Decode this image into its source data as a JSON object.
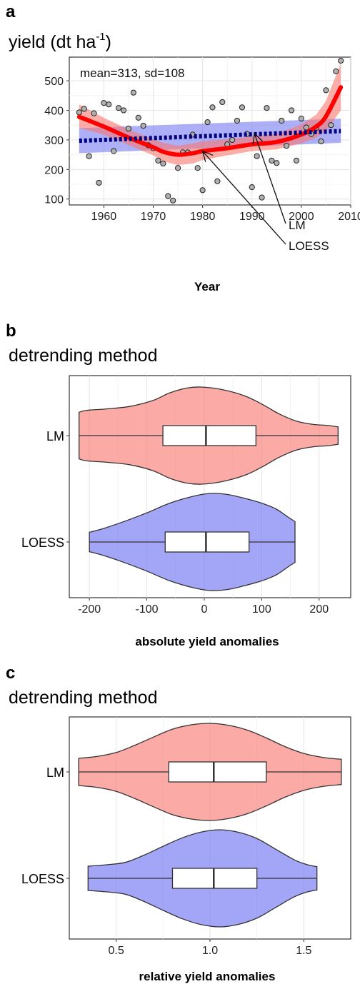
{
  "panels": [
    {
      "letter": "a",
      "title": "yield (dt ha",
      "title_sup": "-1",
      "title_end": ")"
    },
    {
      "letter": "b",
      "title": "detrending method"
    },
    {
      "letter": "c",
      "title": "detrending method"
    }
  ],
  "labels": {
    "lm": "LM",
    "loess": "LOESS"
  },
  "colors": {
    "lm": "#f8766d",
    "loess": "#6a6df0",
    "loess_line": "#ff0000",
    "lm_line": "#000080"
  },
  "chart_data": [
    {
      "type": "scatter",
      "title": "yield (dt ha-1)",
      "xlabel": "Year",
      "ylabel": "",
      "xlim": [
        1953,
        2010
      ],
      "ylim": [
        80,
        580
      ],
      "xticks": [
        1960,
        1970,
        1980,
        1990,
        2000,
        2010
      ],
      "yticks": [
        100,
        200,
        300,
        400,
        500
      ],
      "grid": true,
      "annotations": [
        "mean=313, sd=108",
        "LM",
        "LOESS"
      ],
      "points": [
        [
          1955,
          393
        ],
        [
          1956,
          405
        ],
        [
          1957,
          245
        ],
        [
          1958,
          390
        ],
        [
          1959,
          155
        ],
        [
          1960,
          425
        ],
        [
          1961,
          420
        ],
        [
          1962,
          262
        ],
        [
          1963,
          408
        ],
        [
          1964,
          400
        ],
        [
          1965,
          338
        ],
        [
          1966,
          460
        ],
        [
          1967,
          375
        ],
        [
          1968,
          348
        ],
        [
          1969,
          282
        ],
        [
          1970,
          272
        ],
        [
          1971,
          230
        ],
        [
          1972,
          220
        ],
        [
          1973,
          110
        ],
        [
          1974,
          95
        ],
        [
          1975,
          205
        ],
        [
          1976,
          258
        ],
        [
          1977,
          258
        ],
        [
          1978,
          318
        ],
        [
          1979,
          205
        ],
        [
          1980,
          130
        ],
        [
          1981,
          360
        ],
        [
          1982,
          410
        ],
        [
          1983,
          160
        ],
        [
          1984,
          428
        ],
        [
          1985,
          285
        ],
        [
          1986,
          300
        ],
        [
          1987,
          365
        ],
        [
          1988,
          410
        ],
        [
          1989,
          320
        ],
        [
          1990,
          140
        ],
        [
          1991,
          245
        ],
        [
          1992,
          105
        ],
        [
          1993,
          408
        ],
        [
          1994,
          230
        ],
        [
          1995,
          222
        ],
        [
          1996,
          365
        ],
        [
          1997,
          280
        ],
        [
          1998,
          400
        ],
        [
          1999,
          230
        ],
        [
          2000,
          372
        ],
        [
          2001,
          342
        ],
        [
          2002,
          320
        ],
        [
          2003,
          340
        ],
        [
          2004,
          295
        ],
        [
          2005,
          468
        ],
        [
          2006,
          350
        ],
        [
          2007,
          532
        ],
        [
          2008,
          568
        ]
      ],
      "series": [
        {
          "name": "LOESS",
          "x": [
            1955,
            1960,
            1965,
            1970,
            1972,
            1975,
            1978,
            1980,
            1985,
            1990,
            1995,
            2000,
            2003,
            2005,
            2008
          ],
          "y": [
            378,
            345,
            308,
            275,
            260,
            250,
            255,
            262,
            272,
            285,
            293,
            318,
            345,
            380,
            478
          ],
          "lower": [
            340,
            318,
            283,
            248,
            228,
            215,
            220,
            232,
            248,
            262,
            268,
            288,
            308,
            330,
            400
          ],
          "upper": [
            420,
            375,
            335,
            302,
            290,
            280,
            288,
            295,
            302,
            312,
            320,
            352,
            385,
            432,
            560
          ]
        },
        {
          "name": "LM",
          "x": [
            1955,
            2008
          ],
          "y": [
            297,
            330
          ],
          "lower": [
            255,
            290
          ],
          "upper": [
            340,
            372
          ]
        }
      ]
    },
    {
      "type": "violin",
      "xlabel": "absolute yield anomalies",
      "ylabel": "",
      "xlim": [
        -235,
        255
      ],
      "xticks": [
        -200,
        -100,
        0,
        100,
        200
      ],
      "grid": true,
      "categories": [
        "LM",
        "LOESS"
      ],
      "series": [
        {
          "name": "LM",
          "min": -218,
          "q1": -72,
          "median": 3,
          "q3": 90,
          "max": 233,
          "density": [
            [
              -218,
              0.48
            ],
            [
              -205,
              0.52
            ],
            [
              -170,
              0.55
            ],
            [
              -130,
              0.6
            ],
            [
              -90,
              0.72
            ],
            [
              -60,
              0.88
            ],
            [
              -30,
              0.98
            ],
            [
              -5,
              1.0
            ],
            [
              30,
              0.95
            ],
            [
              70,
              0.82
            ],
            [
              100,
              0.65
            ],
            [
              130,
              0.45
            ],
            [
              160,
              0.3
            ],
            [
              190,
              0.23
            ],
            [
              215,
              0.21
            ],
            [
              233,
              0.18
            ]
          ]
        },
        {
          "name": "LOESS",
          "min": -200,
          "q1": -68,
          "median": 3,
          "q3": 78,
          "max": 158,
          "density": [
            [
              -200,
              0.2
            ],
            [
              -175,
              0.28
            ],
            [
              -140,
              0.42
            ],
            [
              -100,
              0.6
            ],
            [
              -60,
              0.8
            ],
            [
              -20,
              0.94
            ],
            [
              10,
              1.0
            ],
            [
              40,
              0.98
            ],
            [
              70,
              0.9
            ],
            [
              100,
              0.8
            ],
            [
              125,
              0.68
            ],
            [
              145,
              0.52
            ],
            [
              158,
              0.42
            ]
          ]
        }
      ]
    },
    {
      "type": "violin",
      "xlabel": "relative yield anomalies",
      "ylabel": "",
      "xlim": [
        0.25,
        1.75
      ],
      "xticks": [
        0.5,
        1.0,
        1.5
      ],
      "xticklabels": [
        "0.5",
        "1.0",
        "1.5"
      ],
      "grid": true,
      "categories": [
        "LM",
        "LOESS"
      ],
      "series": [
        {
          "name": "LM",
          "min": 0.3,
          "q1": 0.78,
          "median": 1.02,
          "q3": 1.3,
          "max": 1.7,
          "density": [
            [
              0.3,
              0.28
            ],
            [
              0.4,
              0.32
            ],
            [
              0.5,
              0.4
            ],
            [
              0.6,
              0.55
            ],
            [
              0.7,
              0.72
            ],
            [
              0.8,
              0.88
            ],
            [
              0.9,
              0.97
            ],
            [
              1.0,
              1.0
            ],
            [
              1.1,
              0.96
            ],
            [
              1.2,
              0.86
            ],
            [
              1.3,
              0.7
            ],
            [
              1.4,
              0.52
            ],
            [
              1.5,
              0.38
            ],
            [
              1.6,
              0.3
            ],
            [
              1.7,
              0.26
            ]
          ]
        },
        {
          "name": "LOESS",
          "min": 0.35,
          "q1": 0.8,
          "median": 1.02,
          "q3": 1.25,
          "max": 1.57,
          "density": [
            [
              0.35,
              0.25
            ],
            [
              0.45,
              0.28
            ],
            [
              0.55,
              0.33
            ],
            [
              0.65,
              0.48
            ],
            [
              0.75,
              0.66
            ],
            [
              0.85,
              0.83
            ],
            [
              0.95,
              0.95
            ],
            [
              1.05,
              1.0
            ],
            [
              1.15,
              0.95
            ],
            [
              1.25,
              0.82
            ],
            [
              1.35,
              0.6
            ],
            [
              1.45,
              0.38
            ],
            [
              1.52,
              0.28
            ],
            [
              1.57,
              0.24
            ]
          ]
        }
      ]
    }
  ]
}
